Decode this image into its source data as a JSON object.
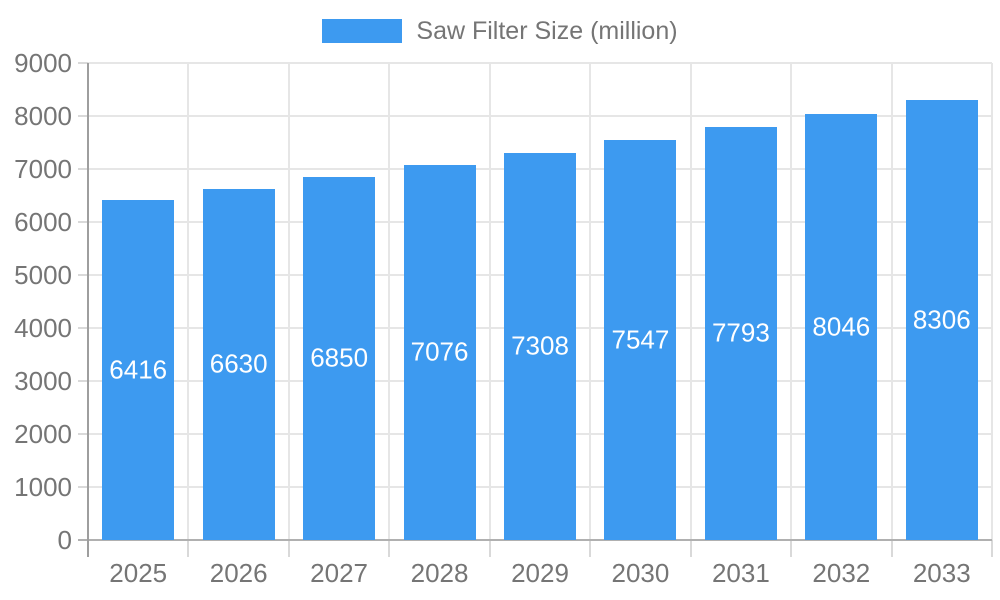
{
  "chart_data": {
    "type": "bar",
    "title": "",
    "legend": {
      "label": "Saw Filter Size (million)",
      "position": "top"
    },
    "categories": [
      "2025",
      "2026",
      "2027",
      "2028",
      "2029",
      "2030",
      "2031",
      "2032",
      "2033"
    ],
    "series": [
      {
        "name": "Saw Filter Size (million)",
        "values": [
          6416,
          6630,
          6850,
          7076,
          7308,
          7547,
          7793,
          8046,
          8306
        ]
      }
    ],
    "xlabel": "",
    "ylabel": "",
    "ylim": [
      0,
      9000
    ],
    "yticks": [
      0,
      1000,
      2000,
      3000,
      4000,
      5000,
      6000,
      7000,
      8000,
      9000
    ],
    "grid": true,
    "bar_value_labels_inside": true,
    "colors": {
      "bar": "#3d9af0",
      "axis_text": "#757575",
      "gridline": "#e6e6e6",
      "tick": "#d9d9d9",
      "axis_line": "#9e9e9e",
      "baseline": "#b0b0b0",
      "bar_label_text": "#ffffff",
      "background": "#ffffff"
    }
  }
}
